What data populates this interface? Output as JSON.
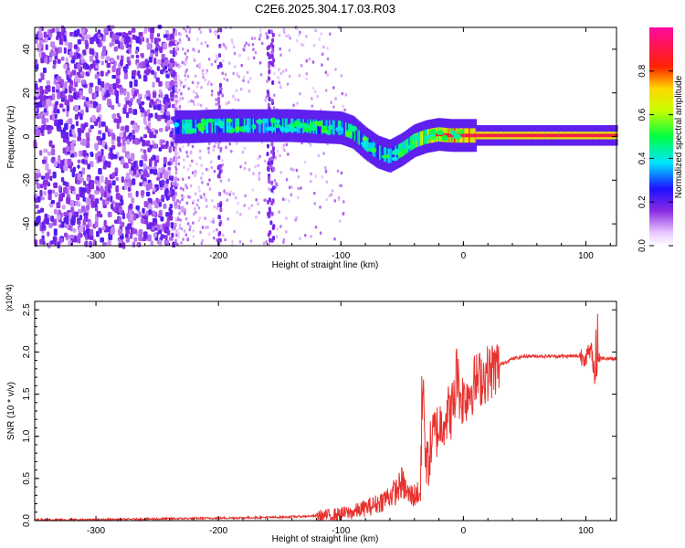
{
  "title": "C2E6.2025.304.17.03.R03",
  "chart_data": [
    {
      "type": "heatmap",
      "xlabel": "Height of straight line (km)",
      "ylabel": "Frequency (Hz)",
      "xlim": [
        -350,
        125
      ],
      "ylim": [
        -50,
        50
      ],
      "x_ticks": [
        -300,
        -200,
        -100,
        0,
        100
      ],
      "x_tick_labels": [
        "-300",
        "-200",
        "-100",
        "0",
        "100"
      ],
      "y_ticks": [
        -40,
        -20,
        0,
        20,
        40
      ],
      "y_tick_labels": [
        "-40",
        "-20",
        "0",
        "20",
        "40"
      ],
      "colorbar": {
        "label": "Normalized spectral amplitude",
        "range": [
          0,
          1
        ],
        "ticks": [
          0.0,
          0.2,
          0.4,
          0.6,
          0.8
        ],
        "tick_labels": [
          "0.0",
          "0.2",
          "0.4",
          "0.6",
          "0.8"
        ],
        "colormap": "rainbow (white-violet-blue-cyan-green-yellow-red-magenta)"
      },
      "ridge": {
        "x": [
          -235,
          -220,
          -200,
          -180,
          -160,
          -140,
          -120,
          -100,
          -90,
          -80,
          -70,
          -60,
          -50,
          -40,
          -30,
          -20,
          -10,
          0,
          20,
          60,
          100,
          125
        ],
        "y": [
          4.5,
          4.5,
          5,
          5,
          5,
          5,
          4.5,
          4,
          2,
          -3,
          -7,
          -9,
          -6,
          -2,
          0,
          1,
          0.5,
          0.5,
          0.5,
          0.5,
          0.5,
          0.5
        ],
        "amplitude": [
          0.35,
          0.45,
          0.4,
          0.45,
          0.4,
          0.45,
          0.45,
          0.45,
          0.5,
          0.5,
          0.45,
          0.4,
          0.5,
          0.6,
          0.75,
          0.85,
          0.9,
          0.9,
          0.9,
          0.9,
          0.9,
          0.9
        ]
      },
      "noise_region_x": [
        -350,
        -235
      ]
    },
    {
      "type": "line",
      "xlabel": "Height of straight line (km)",
      "ylabel": "SNR (10 * v/v)",
      "y_multiplier": "(x10^4)",
      "xlim": [
        -350,
        125
      ],
      "ylim": [
        0,
        2.6
      ],
      "x_ticks": [
        -300,
        -200,
        -100,
        0,
        100
      ],
      "x_tick_labels": [
        "-300",
        "-200",
        "-100",
        "0",
        "100"
      ],
      "y_ticks": [
        0.0,
        0.5,
        1.0,
        1.5,
        2.0,
        2.5
      ],
      "y_tick_labels": [
        "0.0",
        "0.5",
        "1.0",
        "1.5",
        "2.0",
        "2.5"
      ],
      "series": [
        {
          "color": "#e8302c",
          "x": [
            -350,
            -300,
            -250,
            -200,
            -150,
            -110,
            -90,
            -80,
            -70,
            -60,
            -55,
            -50,
            -45,
            -40,
            -35,
            -33,
            -30,
            -25,
            -20,
            -15,
            -10,
            -5,
            0,
            10,
            20,
            30,
            40,
            50,
            60,
            80,
            100,
            105,
            108,
            110,
            125
          ],
          "y": [
            0.01,
            0.01,
            0.02,
            0.03,
            0.04,
            0.06,
            0.1,
            0.15,
            0.2,
            0.3,
            0.35,
            0.45,
            0.3,
            0.3,
            0.35,
            1.5,
            0.6,
            1.0,
            1.1,
            1.25,
            1.3,
            1.5,
            1.45,
            1.65,
            1.75,
            1.85,
            1.92,
            1.95,
            1.95,
            1.95,
            1.95,
            2.0,
            1.6,
            1.93,
            1.92
          ]
        }
      ]
    }
  ]
}
